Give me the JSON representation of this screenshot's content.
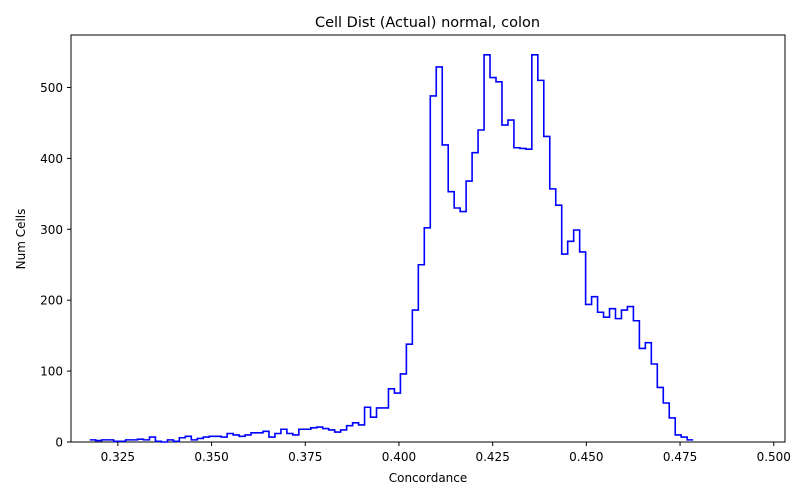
{
  "chart_data": {
    "type": "step",
    "title": "Cell Dist (Actual) normal, colon",
    "xlabel": "Concordance",
    "ylabel": "Num Cells",
    "xlim": [
      0.3125,
      0.503
    ],
    "ylim": [
      0,
      574
    ],
    "xticks": [
      0.325,
      0.35,
      0.375,
      0.4,
      0.425,
      0.45,
      0.475,
      0.5
    ],
    "xtick_labels": [
      "0.325",
      "0.350",
      "0.375",
      "0.400",
      "0.425",
      "0.450",
      "0.475",
      "0.500"
    ],
    "yticks": [
      0,
      100,
      200,
      300,
      400,
      500
    ],
    "ytick_labels": [
      "0",
      "100",
      "200",
      "300",
      "400",
      "500"
    ],
    "grid": false,
    "line_color": "#0000ff",
    "bin_start": 0.3175,
    "bin_width": 0.001594,
    "values": [
      3,
      2,
      3,
      3,
      1,
      1,
      3,
      3,
      4,
      3,
      7,
      1,
      0,
      3,
      1,
      6,
      8,
      3,
      5,
      7,
      8,
      8,
      7,
      12,
      10,
      8,
      10,
      13,
      13,
      15,
      7,
      12,
      18,
      12,
      10,
      18,
      18,
      20,
      21,
      19,
      17,
      14,
      17,
      23,
      27,
      24,
      49,
      35,
      48,
      48,
      75,
      69,
      96,
      138,
      186,
      250,
      302,
      488,
      529,
      419,
      353,
      330,
      325,
      368,
      408,
      440,
      546,
      514,
      508,
      447,
      454,
      415,
      414,
      413,
      546,
      510,
      431,
      357,
      334,
      265,
      283,
      299,
      268,
      194,
      205,
      183,
      176,
      188,
      174,
      186,
      191,
      171,
      132,
      140,
      110,
      77,
      55,
      34,
      10,
      7,
      3
    ]
  }
}
